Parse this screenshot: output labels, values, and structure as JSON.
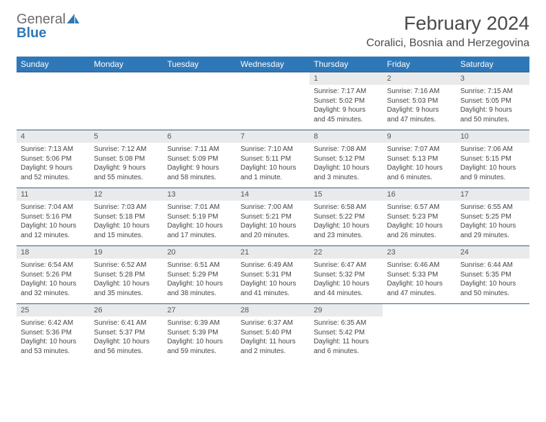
{
  "brand": {
    "general": "General",
    "blue": "Blue"
  },
  "title": "February 2024",
  "location": "Coralici, Bosnia and Herzegovina",
  "colors": {
    "header_bg": "#2f78b8",
    "header_text": "#ffffff",
    "rule": "#2f5d88",
    "daynum_bg": "#e9eaeb",
    "text": "#444444",
    "title_text": "#4a4a4a"
  },
  "weekdays": [
    "Sunday",
    "Monday",
    "Tuesday",
    "Wednesday",
    "Thursday",
    "Friday",
    "Saturday"
  ],
  "weeks": [
    [
      null,
      null,
      null,
      null,
      {
        "n": "1",
        "sr": "7:17 AM",
        "ss": "5:02 PM",
        "d1": "Daylight: 9 hours",
        "d2": "and 45 minutes."
      },
      {
        "n": "2",
        "sr": "7:16 AM",
        "ss": "5:03 PM",
        "d1": "Daylight: 9 hours",
        "d2": "and 47 minutes."
      },
      {
        "n": "3",
        "sr": "7:15 AM",
        "ss": "5:05 PM",
        "d1": "Daylight: 9 hours",
        "d2": "and 50 minutes."
      }
    ],
    [
      {
        "n": "4",
        "sr": "7:13 AM",
        "ss": "5:06 PM",
        "d1": "Daylight: 9 hours",
        "d2": "and 52 minutes."
      },
      {
        "n": "5",
        "sr": "7:12 AM",
        "ss": "5:08 PM",
        "d1": "Daylight: 9 hours",
        "d2": "and 55 minutes."
      },
      {
        "n": "6",
        "sr": "7:11 AM",
        "ss": "5:09 PM",
        "d1": "Daylight: 9 hours",
        "d2": "and 58 minutes."
      },
      {
        "n": "7",
        "sr": "7:10 AM",
        "ss": "5:11 PM",
        "d1": "Daylight: 10 hours",
        "d2": "and 1 minute."
      },
      {
        "n": "8",
        "sr": "7:08 AM",
        "ss": "5:12 PM",
        "d1": "Daylight: 10 hours",
        "d2": "and 3 minutes."
      },
      {
        "n": "9",
        "sr": "7:07 AM",
        "ss": "5:13 PM",
        "d1": "Daylight: 10 hours",
        "d2": "and 6 minutes."
      },
      {
        "n": "10",
        "sr": "7:06 AM",
        "ss": "5:15 PM",
        "d1": "Daylight: 10 hours",
        "d2": "and 9 minutes."
      }
    ],
    [
      {
        "n": "11",
        "sr": "7:04 AM",
        "ss": "5:16 PM",
        "d1": "Daylight: 10 hours",
        "d2": "and 12 minutes."
      },
      {
        "n": "12",
        "sr": "7:03 AM",
        "ss": "5:18 PM",
        "d1": "Daylight: 10 hours",
        "d2": "and 15 minutes."
      },
      {
        "n": "13",
        "sr": "7:01 AM",
        "ss": "5:19 PM",
        "d1": "Daylight: 10 hours",
        "d2": "and 17 minutes."
      },
      {
        "n": "14",
        "sr": "7:00 AM",
        "ss": "5:21 PM",
        "d1": "Daylight: 10 hours",
        "d2": "and 20 minutes."
      },
      {
        "n": "15",
        "sr": "6:58 AM",
        "ss": "5:22 PM",
        "d1": "Daylight: 10 hours",
        "d2": "and 23 minutes."
      },
      {
        "n": "16",
        "sr": "6:57 AM",
        "ss": "5:23 PM",
        "d1": "Daylight: 10 hours",
        "d2": "and 26 minutes."
      },
      {
        "n": "17",
        "sr": "6:55 AM",
        "ss": "5:25 PM",
        "d1": "Daylight: 10 hours",
        "d2": "and 29 minutes."
      }
    ],
    [
      {
        "n": "18",
        "sr": "6:54 AM",
        "ss": "5:26 PM",
        "d1": "Daylight: 10 hours",
        "d2": "and 32 minutes."
      },
      {
        "n": "19",
        "sr": "6:52 AM",
        "ss": "5:28 PM",
        "d1": "Daylight: 10 hours",
        "d2": "and 35 minutes."
      },
      {
        "n": "20",
        "sr": "6:51 AM",
        "ss": "5:29 PM",
        "d1": "Daylight: 10 hours",
        "d2": "and 38 minutes."
      },
      {
        "n": "21",
        "sr": "6:49 AM",
        "ss": "5:31 PM",
        "d1": "Daylight: 10 hours",
        "d2": "and 41 minutes."
      },
      {
        "n": "22",
        "sr": "6:47 AM",
        "ss": "5:32 PM",
        "d1": "Daylight: 10 hours",
        "d2": "and 44 minutes."
      },
      {
        "n": "23",
        "sr": "6:46 AM",
        "ss": "5:33 PM",
        "d1": "Daylight: 10 hours",
        "d2": "and 47 minutes."
      },
      {
        "n": "24",
        "sr": "6:44 AM",
        "ss": "5:35 PM",
        "d1": "Daylight: 10 hours",
        "d2": "and 50 minutes."
      }
    ],
    [
      {
        "n": "25",
        "sr": "6:42 AM",
        "ss": "5:36 PM",
        "d1": "Daylight: 10 hours",
        "d2": "and 53 minutes."
      },
      {
        "n": "26",
        "sr": "6:41 AM",
        "ss": "5:37 PM",
        "d1": "Daylight: 10 hours",
        "d2": "and 56 minutes."
      },
      {
        "n": "27",
        "sr": "6:39 AM",
        "ss": "5:39 PM",
        "d1": "Daylight: 10 hours",
        "d2": "and 59 minutes."
      },
      {
        "n": "28",
        "sr": "6:37 AM",
        "ss": "5:40 PM",
        "d1": "Daylight: 11 hours",
        "d2": "and 2 minutes."
      },
      {
        "n": "29",
        "sr": "6:35 AM",
        "ss": "5:42 PM",
        "d1": "Daylight: 11 hours",
        "d2": "and 6 minutes."
      },
      null,
      null
    ]
  ],
  "labels": {
    "sunrise": "Sunrise: ",
    "sunset": "Sunset: "
  }
}
